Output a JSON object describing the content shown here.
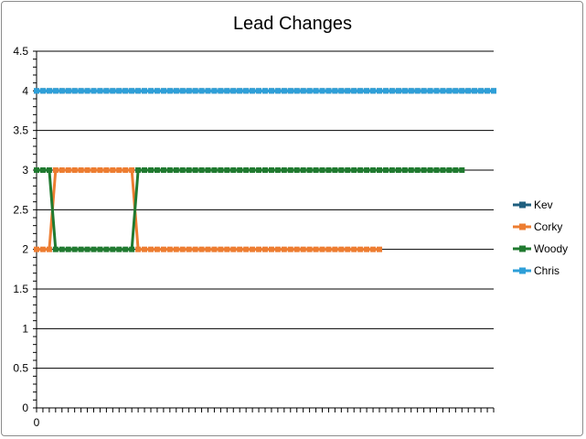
{
  "chart_data": {
    "type": "line",
    "title": "Lead Changes",
    "xlabel": "",
    "ylabel": "",
    "ylim": [
      0,
      4.5
    ],
    "yticks": [
      0,
      0.5,
      1,
      1.5,
      2,
      2.5,
      3,
      3.5,
      4,
      4.5
    ],
    "ytick_labels": [
      "0",
      "0.5",
      "1",
      "1.5",
      "2",
      "2.5",
      "3",
      "3.5",
      "4",
      "4.5"
    ],
    "xlim": [
      0,
      72
    ],
    "xtick_labels": [
      {
        "x": 0,
        "label": "0"
      }
    ],
    "grid": "horizontal",
    "legend_position": "right",
    "series": [
      {
        "name": "Kev",
        "color": "#1f5f7f",
        "points": [
          [
            0,
            4
          ],
          [
            1,
            4
          ],
          [
            2,
            4
          ],
          [
            3,
            4
          ],
          [
            4,
            4
          ],
          [
            5,
            4
          ],
          [
            6,
            4
          ],
          [
            7,
            4
          ],
          [
            8,
            4
          ],
          [
            9,
            4
          ],
          [
            10,
            4
          ],
          [
            11,
            4
          ],
          [
            12,
            4
          ],
          [
            13,
            4
          ],
          [
            14,
            4
          ],
          [
            15,
            4
          ],
          [
            16,
            4
          ],
          [
            17,
            4
          ],
          [
            18,
            4
          ],
          [
            19,
            4
          ],
          [
            20,
            4
          ],
          [
            21,
            4
          ],
          [
            22,
            4
          ],
          [
            23,
            4
          ],
          [
            24,
            4
          ],
          [
            25,
            4
          ],
          [
            26,
            4
          ],
          [
            27,
            4
          ],
          [
            28,
            4
          ],
          [
            29,
            4
          ],
          [
            30,
            4
          ],
          [
            31,
            4
          ],
          [
            32,
            4
          ],
          [
            33,
            4
          ],
          [
            34,
            4
          ],
          [
            35,
            4
          ],
          [
            36,
            4
          ],
          [
            37,
            4
          ],
          [
            38,
            4
          ],
          [
            39,
            4
          ],
          [
            40,
            4
          ],
          [
            41,
            4
          ],
          [
            42,
            4
          ],
          [
            43,
            4
          ],
          [
            44,
            4
          ],
          [
            45,
            4
          ],
          [
            46,
            4
          ],
          [
            47,
            4
          ],
          [
            48,
            4
          ],
          [
            49,
            4
          ],
          [
            50,
            4
          ],
          [
            51,
            4
          ],
          [
            52,
            4
          ],
          [
            53,
            4
          ],
          [
            54,
            4
          ],
          [
            55,
            4
          ],
          [
            56,
            4
          ],
          [
            57,
            4
          ],
          [
            58,
            4
          ],
          [
            59,
            4
          ],
          [
            60,
            4
          ],
          [
            61,
            4
          ],
          [
            62,
            4
          ],
          [
            63,
            4
          ],
          [
            64,
            4
          ],
          [
            65,
            4
          ],
          [
            66,
            4
          ],
          [
            67,
            4
          ],
          [
            68,
            4
          ],
          [
            69,
            4
          ],
          [
            70,
            4
          ],
          [
            71,
            4
          ],
          [
            72,
            4
          ]
        ]
      },
      {
        "name": "Corky",
        "color": "#ed7d31",
        "points": [
          [
            0,
            2
          ],
          [
            1,
            2
          ],
          [
            2,
            2
          ],
          [
            3,
            3
          ],
          [
            4,
            3
          ],
          [
            5,
            3
          ],
          [
            6,
            3
          ],
          [
            7,
            3
          ],
          [
            8,
            3
          ],
          [
            9,
            3
          ],
          [
            10,
            3
          ],
          [
            11,
            3
          ],
          [
            12,
            3
          ],
          [
            13,
            3
          ],
          [
            14,
            3
          ],
          [
            15,
            3
          ],
          [
            16,
            2
          ],
          [
            17,
            2
          ],
          [
            18,
            2
          ],
          [
            19,
            2
          ],
          [
            20,
            2
          ],
          [
            21,
            2
          ],
          [
            22,
            2
          ],
          [
            23,
            2
          ],
          [
            24,
            2
          ],
          [
            25,
            2
          ],
          [
            26,
            2
          ],
          [
            27,
            2
          ],
          [
            28,
            2
          ],
          [
            29,
            2
          ],
          [
            30,
            2
          ],
          [
            31,
            2
          ],
          [
            32,
            2
          ],
          [
            33,
            2
          ],
          [
            34,
            2
          ],
          [
            35,
            2
          ],
          [
            36,
            2
          ],
          [
            37,
            2
          ],
          [
            38,
            2
          ],
          [
            39,
            2
          ],
          [
            40,
            2
          ],
          [
            41,
            2
          ],
          [
            42,
            2
          ],
          [
            43,
            2
          ],
          [
            44,
            2
          ],
          [
            45,
            2
          ],
          [
            46,
            2
          ],
          [
            47,
            2
          ],
          [
            48,
            2
          ],
          [
            49,
            2
          ],
          [
            50,
            2
          ],
          [
            51,
            2
          ],
          [
            52,
            2
          ],
          [
            53,
            2
          ],
          [
            54,
            2
          ]
        ]
      },
      {
        "name": "Woody",
        "color": "#207a30",
        "points": [
          [
            0,
            3
          ],
          [
            1,
            3
          ],
          [
            2,
            3
          ],
          [
            3,
            2
          ],
          [
            4,
            2
          ],
          [
            5,
            2
          ],
          [
            6,
            2
          ],
          [
            7,
            2
          ],
          [
            8,
            2
          ],
          [
            9,
            2
          ],
          [
            10,
            2
          ],
          [
            11,
            2
          ],
          [
            12,
            2
          ],
          [
            13,
            2
          ],
          [
            14,
            2
          ],
          [
            15,
            2
          ],
          [
            16,
            3
          ],
          [
            17,
            3
          ],
          [
            18,
            3
          ],
          [
            19,
            3
          ],
          [
            20,
            3
          ],
          [
            21,
            3
          ],
          [
            22,
            3
          ],
          [
            23,
            3
          ],
          [
            24,
            3
          ],
          [
            25,
            3
          ],
          [
            26,
            3
          ],
          [
            27,
            3
          ],
          [
            28,
            3
          ],
          [
            29,
            3
          ],
          [
            30,
            3
          ],
          [
            31,
            3
          ],
          [
            32,
            3
          ],
          [
            33,
            3
          ],
          [
            34,
            3
          ],
          [
            35,
            3
          ],
          [
            36,
            3
          ],
          [
            37,
            3
          ],
          [
            38,
            3
          ],
          [
            39,
            3
          ],
          [
            40,
            3
          ],
          [
            41,
            3
          ],
          [
            42,
            3
          ],
          [
            43,
            3
          ],
          [
            44,
            3
          ],
          [
            45,
            3
          ],
          [
            46,
            3
          ],
          [
            47,
            3
          ],
          [
            48,
            3
          ],
          [
            49,
            3
          ],
          [
            50,
            3
          ],
          [
            51,
            3
          ],
          [
            52,
            3
          ],
          [
            53,
            3
          ],
          [
            54,
            3
          ],
          [
            55,
            3
          ],
          [
            56,
            3
          ],
          [
            57,
            3
          ],
          [
            58,
            3
          ],
          [
            59,
            3
          ],
          [
            60,
            3
          ],
          [
            61,
            3
          ],
          [
            62,
            3
          ],
          [
            63,
            3
          ],
          [
            64,
            3
          ],
          [
            65,
            3
          ],
          [
            66,
            3
          ],
          [
            67,
            3
          ]
        ]
      },
      {
        "name": "Chris",
        "color": "#2e9fd8",
        "points": [
          [
            0,
            4
          ],
          [
            1,
            4
          ],
          [
            2,
            4
          ],
          [
            3,
            4
          ],
          [
            4,
            4
          ],
          [
            5,
            4
          ],
          [
            6,
            4
          ],
          [
            7,
            4
          ],
          [
            8,
            4
          ],
          [
            9,
            4
          ],
          [
            10,
            4
          ],
          [
            11,
            4
          ],
          [
            12,
            4
          ],
          [
            13,
            4
          ],
          [
            14,
            4
          ],
          [
            15,
            4
          ],
          [
            16,
            4
          ],
          [
            17,
            4
          ],
          [
            18,
            4
          ],
          [
            19,
            4
          ],
          [
            20,
            4
          ],
          [
            21,
            4
          ],
          [
            22,
            4
          ],
          [
            23,
            4
          ],
          [
            24,
            4
          ],
          [
            25,
            4
          ],
          [
            26,
            4
          ],
          [
            27,
            4
          ],
          [
            28,
            4
          ],
          [
            29,
            4
          ],
          [
            30,
            4
          ],
          [
            31,
            4
          ],
          [
            32,
            4
          ],
          [
            33,
            4
          ],
          [
            34,
            4
          ],
          [
            35,
            4
          ],
          [
            36,
            4
          ],
          [
            37,
            4
          ],
          [
            38,
            4
          ],
          [
            39,
            4
          ],
          [
            40,
            4
          ],
          [
            41,
            4
          ],
          [
            42,
            4
          ],
          [
            43,
            4
          ],
          [
            44,
            4
          ],
          [
            45,
            4
          ],
          [
            46,
            4
          ],
          [
            47,
            4
          ],
          [
            48,
            4
          ],
          [
            49,
            4
          ],
          [
            50,
            4
          ],
          [
            51,
            4
          ],
          [
            52,
            4
          ],
          [
            53,
            4
          ],
          [
            54,
            4
          ],
          [
            55,
            4
          ],
          [
            56,
            4
          ],
          [
            57,
            4
          ],
          [
            58,
            4
          ],
          [
            59,
            4
          ],
          [
            60,
            4
          ],
          [
            61,
            4
          ],
          [
            62,
            4
          ],
          [
            63,
            4
          ],
          [
            64,
            4
          ],
          [
            65,
            4
          ],
          [
            66,
            4
          ],
          [
            67,
            4
          ],
          [
            68,
            4
          ],
          [
            69,
            4
          ],
          [
            70,
            4
          ],
          [
            71,
            4
          ],
          [
            72,
            4
          ]
        ]
      }
    ]
  }
}
